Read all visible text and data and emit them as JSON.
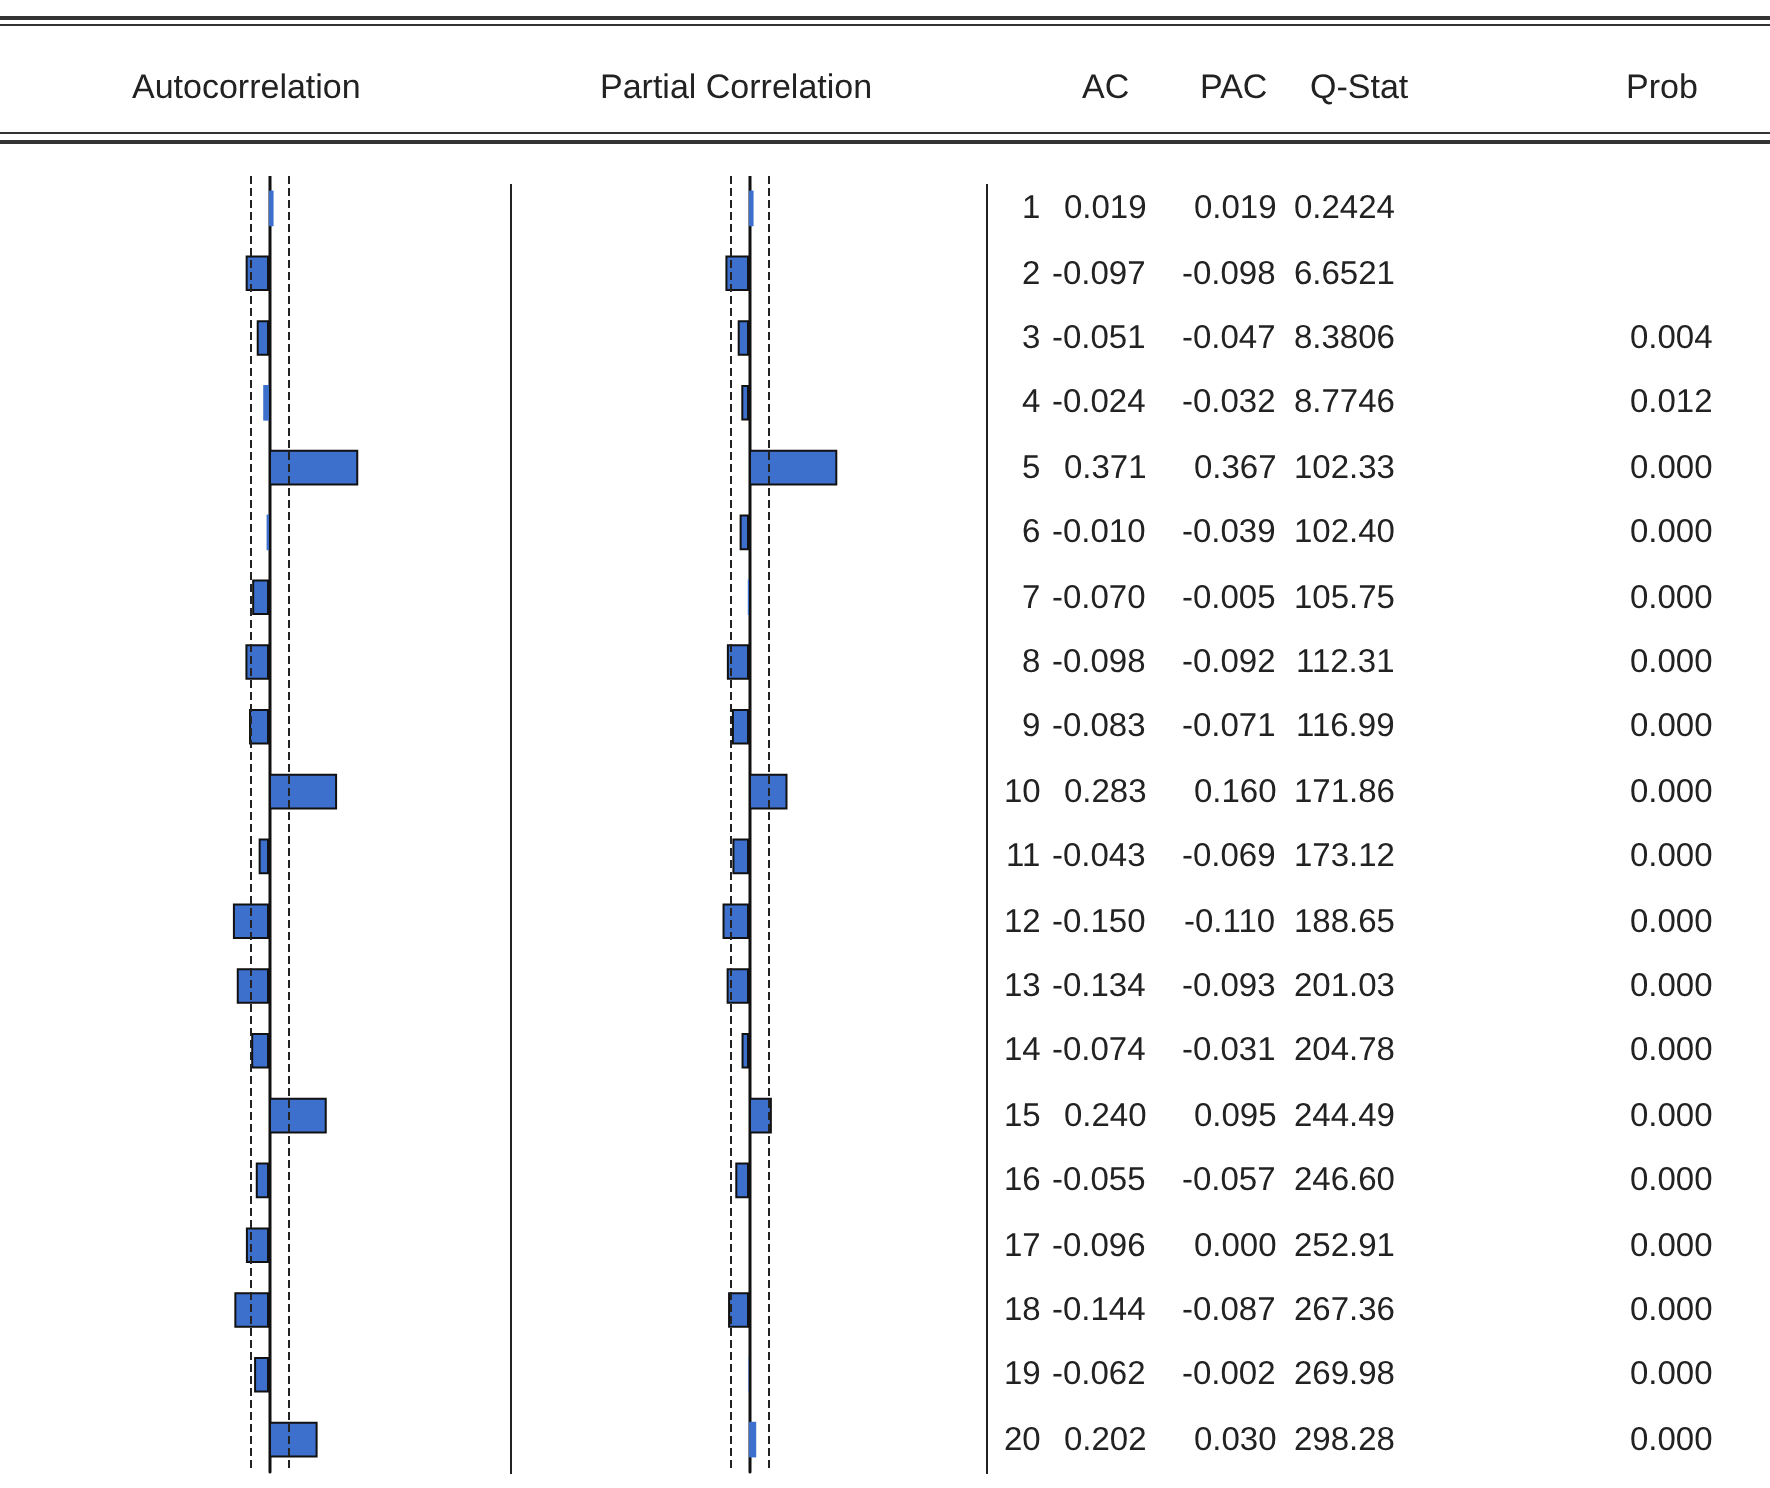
{
  "chart_data": [
    {
      "type": "bar",
      "orientation": "horizontal",
      "title": "Autocorrelation",
      "annotations": [
        "AC"
      ],
      "categories": [
        "1",
        "2",
        "3",
        "4",
        "5",
        "6",
        "7",
        "8",
        "9",
        "10",
        "11",
        "12",
        "13",
        "14",
        "15",
        "16",
        "17",
        "18",
        "19",
        "20"
      ],
      "values": [
        0.019,
        -0.097,
        -0.051,
        -0.024,
        0.371,
        -0.01,
        -0.07,
        -0.098,
        -0.083,
        0.283,
        -0.043,
        -0.15,
        -0.134,
        -0.074,
        0.24,
        -0.055,
        -0.096,
        -0.144,
        -0.062,
        0.202
      ],
      "value_labels": [
        "0.019",
        "-0.097",
        "-0.051",
        "-0.024",
        "0.371",
        "-0.010",
        "-0.070",
        "-0.098",
        "-0.083",
        "0.283",
        "-0.043",
        "-0.150",
        "-0.134",
        "-0.074",
        "0.240",
        "-0.055",
        "-0.096",
        "-0.144",
        "-0.062",
        "0.202"
      ],
      "color": "#3d6fcc",
      "ref_lines": [
        {
          "axis": "x",
          "value": -0.077,
          "line_style": "dashed"
        },
        {
          "axis": "x",
          "value": 0.077,
          "line_style": "dashed"
        }
      ]
    },
    {
      "type": "bar",
      "orientation": "horizontal",
      "title": "Partial Correlation",
      "annotations": [
        "PAC"
      ],
      "categories": [
        "1",
        "2",
        "3",
        "4",
        "5",
        "6",
        "7",
        "8",
        "9",
        "10",
        "11",
        "12",
        "13",
        "14",
        "15",
        "16",
        "17",
        "18",
        "19",
        "20"
      ],
      "values": [
        0.019,
        -0.098,
        -0.047,
        -0.032,
        0.367,
        -0.039,
        -0.005,
        -0.092,
        -0.071,
        0.16,
        -0.069,
        -0.11,
        -0.093,
        -0.031,
        0.095,
        -0.057,
        0.0,
        -0.087,
        -0.002,
        0.03
      ],
      "value_labels": [
        "0.019",
        "-0.098",
        "-0.047",
        "-0.032",
        "0.367",
        "-0.039",
        "-0.005",
        "-0.092",
        "-0.071",
        "0.160",
        "-0.069",
        "-0.110",
        "-0.093",
        "-0.031",
        "0.095",
        "-0.057",
        "0.000",
        "-0.087",
        "-0.002",
        "0.030"
      ],
      "color": "#3d6fcc",
      "tick_labels": false,
      "ref_lines": [
        {
          "axis": "x",
          "value": -0.077,
          "line_style": "dashed"
        },
        {
          "axis": "x",
          "value": 0.077,
          "line_style": "dashed"
        }
      ]
    },
    {
      "type": "other",
      "annotations": [
        "Q-Stat",
        "Prob",
        "0.2424",
        "6.6521",
        "8.3806",
        "8.7746",
        "102.33",
        "102.40",
        "105.75",
        "112.31",
        "116.99",
        "171.86",
        "173.12",
        "188.65",
        "201.03",
        "204.78",
        "244.49",
        "246.60",
        "252.91",
        "267.36",
        "269.98",
        "298.28",
        "0.004",
        "0.012",
        "0.000",
        "0.000",
        "0.000",
        "0.000",
        "0.000",
        "0.000",
        "0.000",
        "0.000",
        "0.000",
        "0.000",
        "0.000",
        "0.000",
        "0.000",
        "0.000",
        "0.000",
        "0.000"
      ]
    }
  ]
}
